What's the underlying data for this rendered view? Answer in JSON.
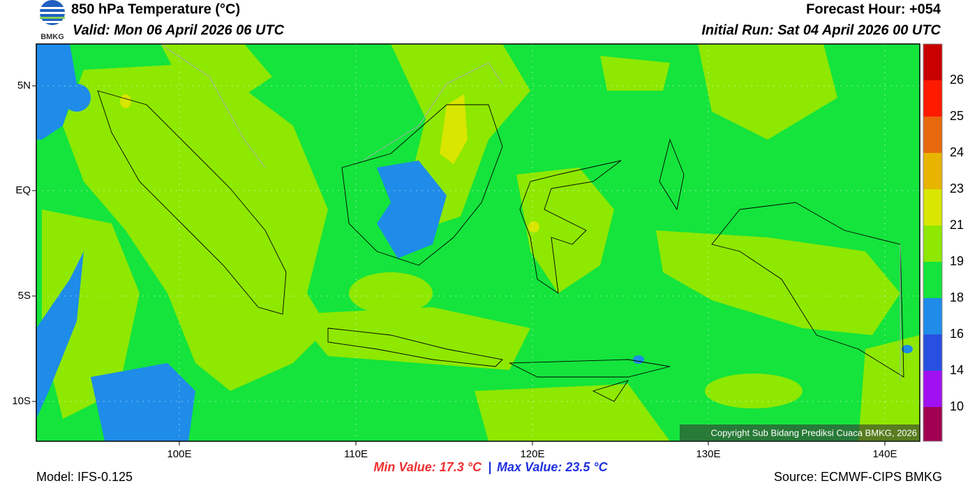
{
  "header": {
    "logo_text": "BMKG",
    "title": "850 hPa Temperature (°C)",
    "valid": "Valid: Mon 06 April 2026 06 UTC",
    "forecast_hour": "Forecast Hour: +054",
    "initial_run": "Initial Run: Sat 04 April 2026 00 UTC"
  },
  "map": {
    "lat_labels": [
      "5N",
      "EQ",
      "5S",
      "10S"
    ],
    "lon_labels": [
      "100E",
      "110E",
      "120E",
      "130E",
      "140E"
    ],
    "copyright": "Copyright Sub Bidang Prediksi Cuaca BMKG, 2026"
  },
  "colorbar": {
    "labels": [
      26,
      25,
      24,
      23,
      21,
      19,
      18,
      16,
      14,
      10
    ],
    "colors": [
      "#c80000",
      "#ff1a00",
      "#e8680e",
      "#e8b400",
      "#d8e600",
      "#8ee800",
      "#14e43c",
      "#1e8ce8",
      "#2850e0",
      "#a010f0",
      "#a00050"
    ]
  },
  "footer": {
    "model": "Model: IFS-0.125",
    "min_value": "Min Value: 17.3 °C",
    "separator": "|",
    "max_value": "Max Value: 23.5 °C",
    "source": "Source: ECMWF-CIPS BMKG"
  }
}
